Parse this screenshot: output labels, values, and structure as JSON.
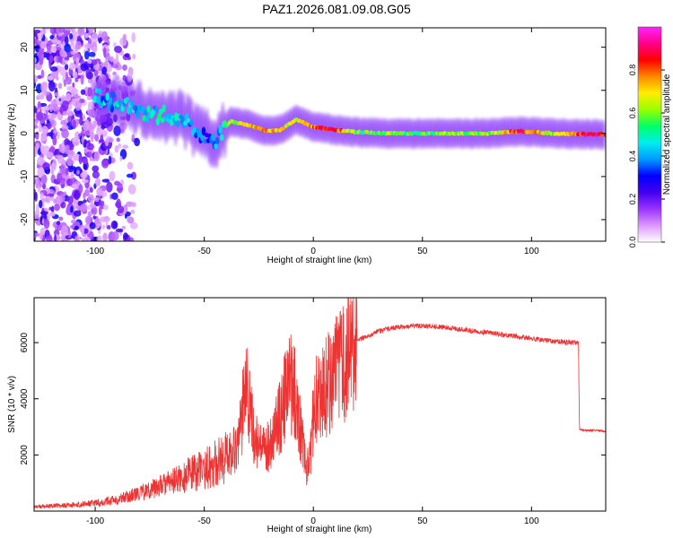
{
  "title": "PAZ1.2026.081.09.08.G05",
  "chart_data": [
    {
      "type": "heatmap",
      "title": "PAZ1.2026.081.09.08.G05",
      "xlabel": "Height of straight line (km)",
      "ylabel": "Frequency (Hz)",
      "xlim": [
        -128,
        134
      ],
      "ylim": [
        -25,
        24.5
      ],
      "xticks": [
        -100,
        -50,
        0,
        50,
        100
      ],
      "yticks": [
        -20,
        -10,
        0,
        10,
        20
      ],
      "colorbar": {
        "label": "Normalized spectral amplitude",
        "range": [
          0,
          1
        ],
        "ticks": [
          "0.0",
          "0.2",
          "0.4",
          "0.6",
          "0.8"
        ],
        "colors": [
          "#ffffff",
          "#dd99ff",
          "#9933ff",
          "#4400ee",
          "#0000ff",
          "#0099ff",
          "#00eeee",
          "#00ff66",
          "#99ff00",
          "#ffee00",
          "#ff8800",
          "#ff0000",
          "#ff0088",
          "#ff22ff"
        ]
      },
      "ridge": [
        {
          "x": -100,
          "f": 8.5,
          "a": 0.4
        },
        {
          "x": -90,
          "f": 7.0,
          "a": 0.42
        },
        {
          "x": -80,
          "f": 5.5,
          "a": 0.45
        },
        {
          "x": -70,
          "f": 4.2,
          "a": 0.45
        },
        {
          "x": -60,
          "f": 3.5,
          "a": 0.45
        },
        {
          "x": -52,
          "f": 0.0,
          "a": 0.35
        },
        {
          "x": -45,
          "f": -2.0,
          "a": 0.35
        },
        {
          "x": -38,
          "f": 2.8,
          "a": 0.6
        },
        {
          "x": -30,
          "f": 2.0,
          "a": 0.7
        },
        {
          "x": -22,
          "f": 0.6,
          "a": 0.75
        },
        {
          "x": -15,
          "f": 0.8,
          "a": 0.7
        },
        {
          "x": -8,
          "f": 3.2,
          "a": 0.65
        },
        {
          "x": 0,
          "f": 1.5,
          "a": 0.8
        },
        {
          "x": 10,
          "f": 0.8,
          "a": 0.85
        },
        {
          "x": 20,
          "f": 0.3,
          "a": 0.55
        },
        {
          "x": 35,
          "f": 0.0,
          "a": 0.6
        },
        {
          "x": 50,
          "f": 0.0,
          "a": 0.55
        },
        {
          "x": 65,
          "f": 0.0,
          "a": 0.6
        },
        {
          "x": 80,
          "f": 0.0,
          "a": 0.6
        },
        {
          "x": 95,
          "f": 0.5,
          "a": 0.85
        },
        {
          "x": 110,
          "f": 0.0,
          "a": 0.6
        },
        {
          "x": 125,
          "f": -0.2,
          "a": 0.9
        },
        {
          "x": 134,
          "f": -0.2,
          "a": 0.85
        }
      ]
    },
    {
      "type": "line",
      "xlabel": "Height of straight line (km)",
      "ylabel": "SNR (10 * v/v)",
      "xlim": [
        -128,
        134
      ],
      "ylim": [
        0,
        7600
      ],
      "xticks": [
        -100,
        -50,
        0,
        50,
        100
      ],
      "yticks": [
        2000,
        4000,
        6000
      ],
      "series": [
        {
          "name": "SNR",
          "color": "#ee3333",
          "x": [
            -128,
            -120,
            -110,
            -100,
            -95,
            -90,
            -85,
            -80,
            -75,
            -70,
            -65,
            -60,
            -55,
            -50,
            -45,
            -40,
            -36,
            -33,
            -31,
            -29,
            -27,
            -25,
            -23,
            -21,
            -19,
            -17,
            -15,
            -13,
            -11,
            -9,
            -7,
            -5,
            -3,
            -2,
            -1,
            0,
            1,
            2,
            4,
            6,
            8,
            10,
            12,
            14,
            16,
            18,
            20,
            25,
            30,
            35,
            40,
            45,
            50,
            55,
            60,
            65,
            70,
            75,
            80,
            85,
            90,
            95,
            100,
            105,
            110,
            115,
            120,
            121.5,
            122,
            125,
            134
          ],
          "y": [
            150,
            180,
            220,
            280,
            350,
            420,
            520,
            620,
            760,
            900,
            1050,
            1200,
            1350,
            1500,
            1700,
            1950,
            2300,
            2900,
            5600,
            3500,
            2600,
            2300,
            2100,
            2300,
            2600,
            3000,
            3400,
            4000,
            4700,
            4300,
            3600,
            2500,
            1500,
            1800,
            2200,
            3600,
            4200,
            3900,
            4200,
            4500,
            4700,
            4850,
            5000,
            5200,
            5500,
            5850,
            6050,
            6250,
            6400,
            6500,
            6560,
            6600,
            6600,
            6580,
            6550,
            6500,
            6450,
            6400,
            6350,
            6300,
            6250,
            6200,
            6150,
            6100,
            6050,
            6020,
            6000,
            6000,
            2900,
            2880,
            2850
          ]
        }
      ]
    }
  ]
}
